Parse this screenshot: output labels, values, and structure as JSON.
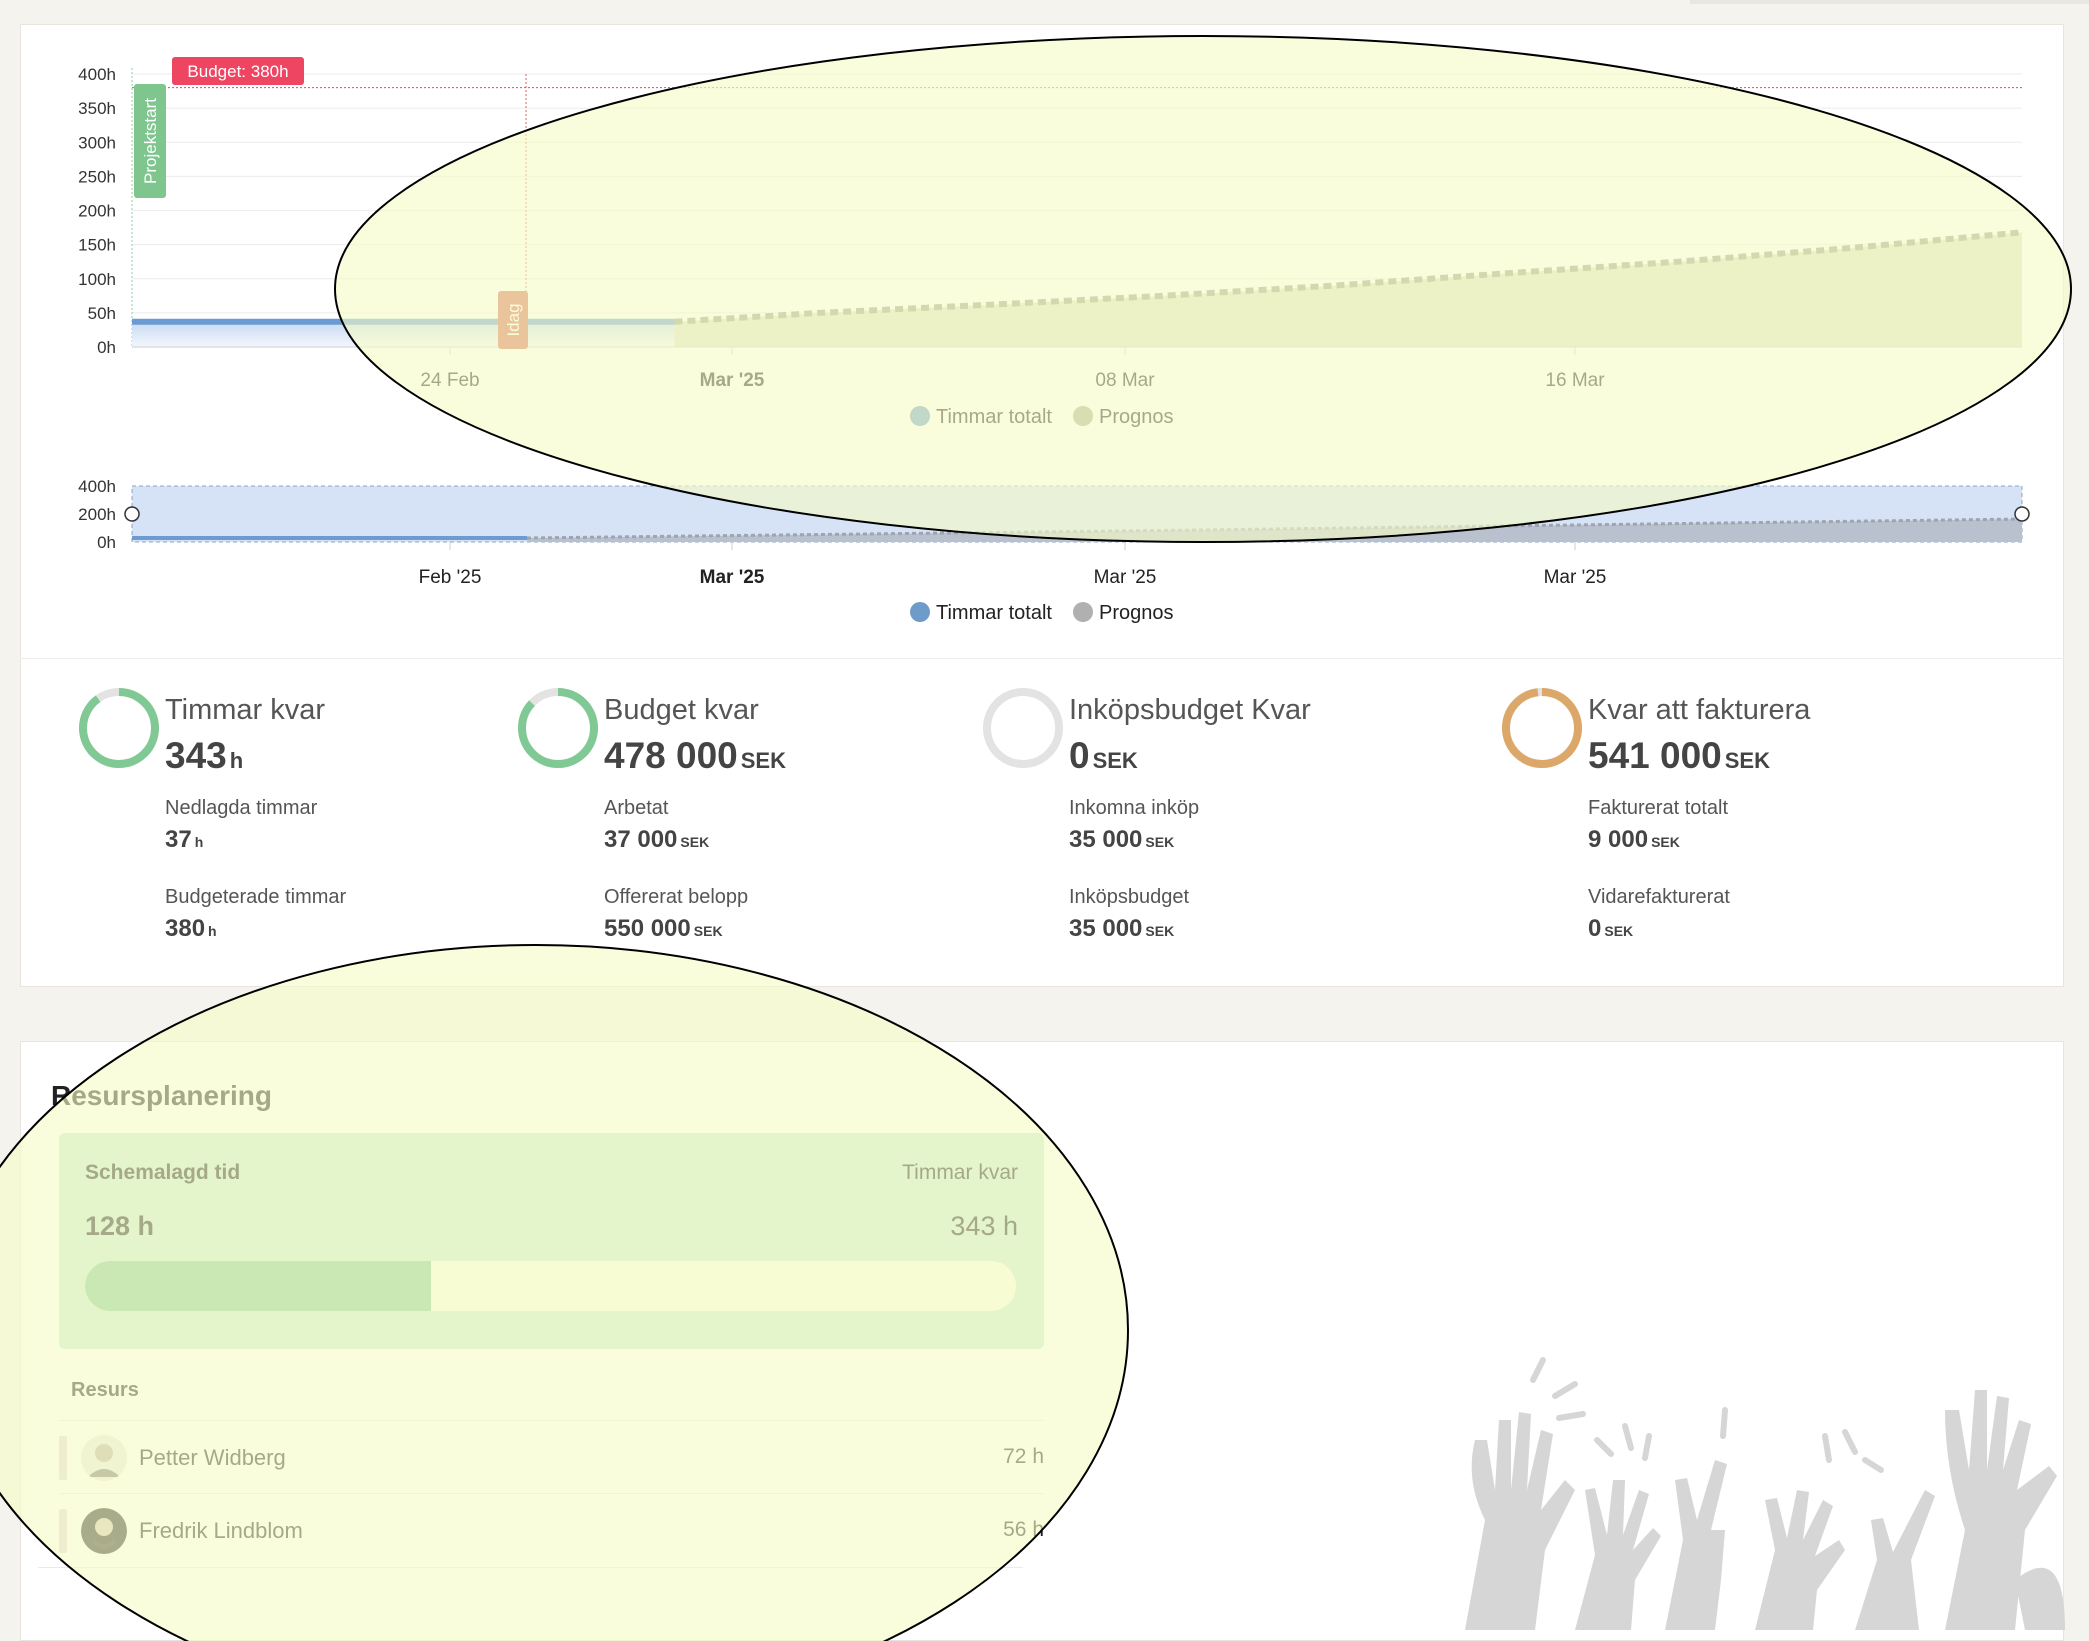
{
  "chart_data": [
    {
      "type": "area",
      "x": [
        "17 Feb",
        "20 Feb",
        "23 Feb",
        "26 Feb",
        "01 Mar",
        "04 Mar",
        "07 Mar",
        "10 Mar",
        "13 Mar",
        "16 Mar",
        "19 Mar",
        "22 Mar"
      ],
      "series": [
        {
          "name": "Timmar totalt",
          "values": [
            37,
            37,
            37,
            37,
            null,
            null,
            null,
            null,
            null,
            null,
            null,
            null
          ],
          "color": "#6b9bd2"
        },
        {
          "name": "Prognos",
          "values": [
            null,
            null,
            null,
            37,
            50,
            62,
            75,
            90,
            108,
            125,
            145,
            168
          ],
          "color": "#9aa08a"
        }
      ],
      "x_ticks": [
        "24 Feb",
        "Mar '25",
        "08 Mar",
        "16 Mar"
      ],
      "y_ticks": [
        "0h",
        "50h",
        "100h",
        "150h",
        "200h",
        "250h",
        "300h",
        "350h",
        "400h"
      ],
      "ylim": [
        0,
        400
      ],
      "grid": true,
      "legend": "bottom",
      "annotations": {
        "budget": "Budget: 380h",
        "budget_value": 380,
        "start": "Projektstart",
        "today": "Idag"
      }
    },
    {
      "type": "area",
      "series": [
        {
          "name": "Timmar totalt",
          "color": "#6b9bd2"
        },
        {
          "name": "Prognos",
          "color": "#b0b0b0"
        }
      ],
      "x_ticks": [
        "Feb '25",
        "Mar '25",
        "Mar '25",
        "Mar '25"
      ],
      "y_ticks": [
        "0h",
        "200h",
        "400h"
      ],
      "ylim": [
        0,
        400
      ],
      "legend": "bottom"
    }
  ],
  "kpis": [
    {
      "title": "Timmar kvar",
      "value": "343",
      "unit": "h",
      "fraction": 0.9,
      "color": "#81c994",
      "sub1_label": "Nedlagda timmar",
      "sub1_value": "37",
      "sub1_unit": "h",
      "sub2_label": "Budgeterade timmar",
      "sub2_value": "380",
      "sub2_unit": "h"
    },
    {
      "title": "Budget kvar",
      "value": "478 000",
      "unit": "SEK",
      "fraction": 0.87,
      "color": "#81c994",
      "sub1_label": "Arbetat",
      "sub1_value": "37 000",
      "sub1_unit": "SEK",
      "sub2_label": "Offererat belopp",
      "sub2_value": "550 000",
      "sub2_unit": "SEK"
    },
    {
      "title": "Inköpsbudget Kvar",
      "value": "0",
      "unit": "SEK",
      "fraction": 0,
      "color": "#e4e4e4",
      "sub1_label": "Inkomna inköp",
      "sub1_value": "35 000",
      "sub1_unit": "SEK",
      "sub2_label": "Inköpsbudget",
      "sub2_value": "35 000",
      "sub2_unit": "SEK"
    },
    {
      "title": "Kvar att fakturera",
      "value": "541 000",
      "unit": "SEK",
      "fraction": 0.98,
      "color": "#dca86a",
      "sub1_label": "Fakturerat totalt",
      "sub1_value": "9 000",
      "sub1_unit": "SEK",
      "sub2_label": "Vidarefakturerat",
      "sub2_value": "0",
      "sub2_unit": "SEK"
    }
  ],
  "resource": {
    "title": "Resursplanering",
    "scheduled_label": "Schemalagd tid",
    "scheduled_value": "128 h",
    "remaining_label": "Timmar kvar",
    "remaining_value": "343 h",
    "progress_fraction": 0.372,
    "resource_header": "Resurs",
    "people": [
      {
        "name": "Petter Widberg",
        "hours": "72 h"
      },
      {
        "name": "Fredrik Lindblom",
        "hours": "56 h"
      }
    ]
  }
}
